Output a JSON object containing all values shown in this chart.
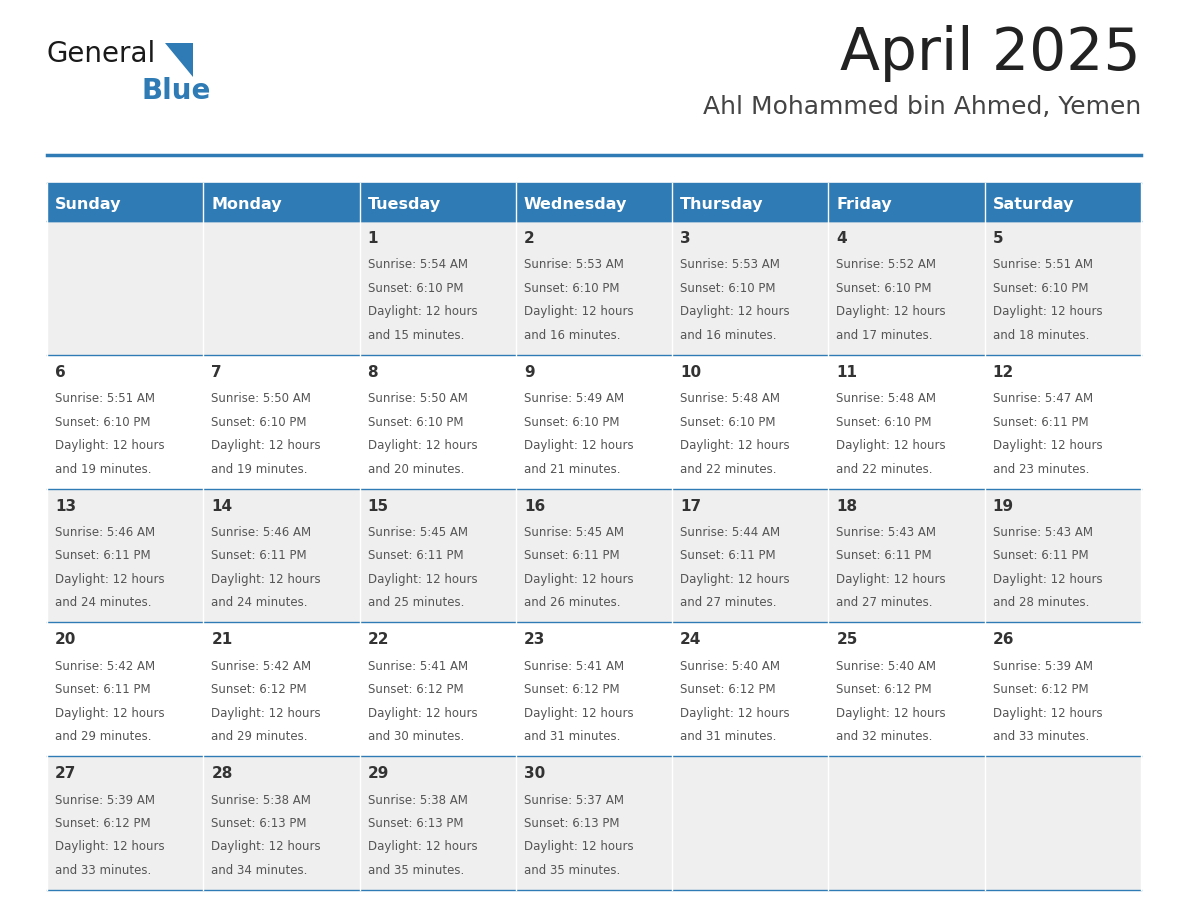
{
  "title": "April 2025",
  "subtitle": "Ahl Mohammed bin Ahmed, Yemen",
  "days_of_week": [
    "Sunday",
    "Monday",
    "Tuesday",
    "Wednesday",
    "Thursday",
    "Friday",
    "Saturday"
  ],
  "header_bg": "#2E7BB5",
  "header_text": "#FFFFFF",
  "cell_bg_odd": "#EFEFEF",
  "cell_bg_even": "#FFFFFF",
  "border_color": "#2E7BB5",
  "title_color": "#222222",
  "subtitle_color": "#444444",
  "day_number_color": "#333333",
  "cell_text_color": "#555555",
  "logo_black": "#1a1a1a",
  "logo_blue": "#2E7BB5",
  "calendar": [
    [
      null,
      null,
      {
        "day": 1,
        "sunrise": "5:54 AM",
        "sunset": "6:10 PM",
        "daylight": "12 hours",
        "daylight2": "and 15 minutes."
      },
      {
        "day": 2,
        "sunrise": "5:53 AM",
        "sunset": "6:10 PM",
        "daylight": "12 hours",
        "daylight2": "and 16 minutes."
      },
      {
        "day": 3,
        "sunrise": "5:53 AM",
        "sunset": "6:10 PM",
        "daylight": "12 hours",
        "daylight2": "and 16 minutes."
      },
      {
        "day": 4,
        "sunrise": "5:52 AM",
        "sunset": "6:10 PM",
        "daylight": "12 hours",
        "daylight2": "and 17 minutes."
      },
      {
        "day": 5,
        "sunrise": "5:51 AM",
        "sunset": "6:10 PM",
        "daylight": "12 hours",
        "daylight2": "and 18 minutes."
      }
    ],
    [
      {
        "day": 6,
        "sunrise": "5:51 AM",
        "sunset": "6:10 PM",
        "daylight": "12 hours",
        "daylight2": "and 19 minutes."
      },
      {
        "day": 7,
        "sunrise": "5:50 AM",
        "sunset": "6:10 PM",
        "daylight": "12 hours",
        "daylight2": "and 19 minutes."
      },
      {
        "day": 8,
        "sunrise": "5:50 AM",
        "sunset": "6:10 PM",
        "daylight": "12 hours",
        "daylight2": "and 20 minutes."
      },
      {
        "day": 9,
        "sunrise": "5:49 AM",
        "sunset": "6:10 PM",
        "daylight": "12 hours",
        "daylight2": "and 21 minutes."
      },
      {
        "day": 10,
        "sunrise": "5:48 AM",
        "sunset": "6:10 PM",
        "daylight": "12 hours",
        "daylight2": "and 22 minutes."
      },
      {
        "day": 11,
        "sunrise": "5:48 AM",
        "sunset": "6:10 PM",
        "daylight": "12 hours",
        "daylight2": "and 22 minutes."
      },
      {
        "day": 12,
        "sunrise": "5:47 AM",
        "sunset": "6:11 PM",
        "daylight": "12 hours",
        "daylight2": "and 23 minutes."
      }
    ],
    [
      {
        "day": 13,
        "sunrise": "5:46 AM",
        "sunset": "6:11 PM",
        "daylight": "12 hours",
        "daylight2": "and 24 minutes."
      },
      {
        "day": 14,
        "sunrise": "5:46 AM",
        "sunset": "6:11 PM",
        "daylight": "12 hours",
        "daylight2": "and 24 minutes."
      },
      {
        "day": 15,
        "sunrise": "5:45 AM",
        "sunset": "6:11 PM",
        "daylight": "12 hours",
        "daylight2": "and 25 minutes."
      },
      {
        "day": 16,
        "sunrise": "5:45 AM",
        "sunset": "6:11 PM",
        "daylight": "12 hours",
        "daylight2": "and 26 minutes."
      },
      {
        "day": 17,
        "sunrise": "5:44 AM",
        "sunset": "6:11 PM",
        "daylight": "12 hours",
        "daylight2": "and 27 minutes."
      },
      {
        "day": 18,
        "sunrise": "5:43 AM",
        "sunset": "6:11 PM",
        "daylight": "12 hours",
        "daylight2": "and 27 minutes."
      },
      {
        "day": 19,
        "sunrise": "5:43 AM",
        "sunset": "6:11 PM",
        "daylight": "12 hours",
        "daylight2": "and 28 minutes."
      }
    ],
    [
      {
        "day": 20,
        "sunrise": "5:42 AM",
        "sunset": "6:11 PM",
        "daylight": "12 hours",
        "daylight2": "and 29 minutes."
      },
      {
        "day": 21,
        "sunrise": "5:42 AM",
        "sunset": "6:12 PM",
        "daylight": "12 hours",
        "daylight2": "and 29 minutes."
      },
      {
        "day": 22,
        "sunrise": "5:41 AM",
        "sunset": "6:12 PM",
        "daylight": "12 hours",
        "daylight2": "and 30 minutes."
      },
      {
        "day": 23,
        "sunrise": "5:41 AM",
        "sunset": "6:12 PM",
        "daylight": "12 hours",
        "daylight2": "and 31 minutes."
      },
      {
        "day": 24,
        "sunrise": "5:40 AM",
        "sunset": "6:12 PM",
        "daylight": "12 hours",
        "daylight2": "and 31 minutes."
      },
      {
        "day": 25,
        "sunrise": "5:40 AM",
        "sunset": "6:12 PM",
        "daylight": "12 hours",
        "daylight2": "and 32 minutes."
      },
      {
        "day": 26,
        "sunrise": "5:39 AM",
        "sunset": "6:12 PM",
        "daylight": "12 hours",
        "daylight2": "and 33 minutes."
      }
    ],
    [
      {
        "day": 27,
        "sunrise": "5:39 AM",
        "sunset": "6:12 PM",
        "daylight": "12 hours",
        "daylight2": "and 33 minutes."
      },
      {
        "day": 28,
        "sunrise": "5:38 AM",
        "sunset": "6:13 PM",
        "daylight": "12 hours",
        "daylight2": "and 34 minutes."
      },
      {
        "day": 29,
        "sunrise": "5:38 AM",
        "sunset": "6:13 PM",
        "daylight": "12 hours",
        "daylight2": "and 35 minutes."
      },
      {
        "day": 30,
        "sunrise": "5:37 AM",
        "sunset": "6:13 PM",
        "daylight": "12 hours",
        "daylight2": "and 35 minutes."
      },
      null,
      null,
      null
    ]
  ]
}
